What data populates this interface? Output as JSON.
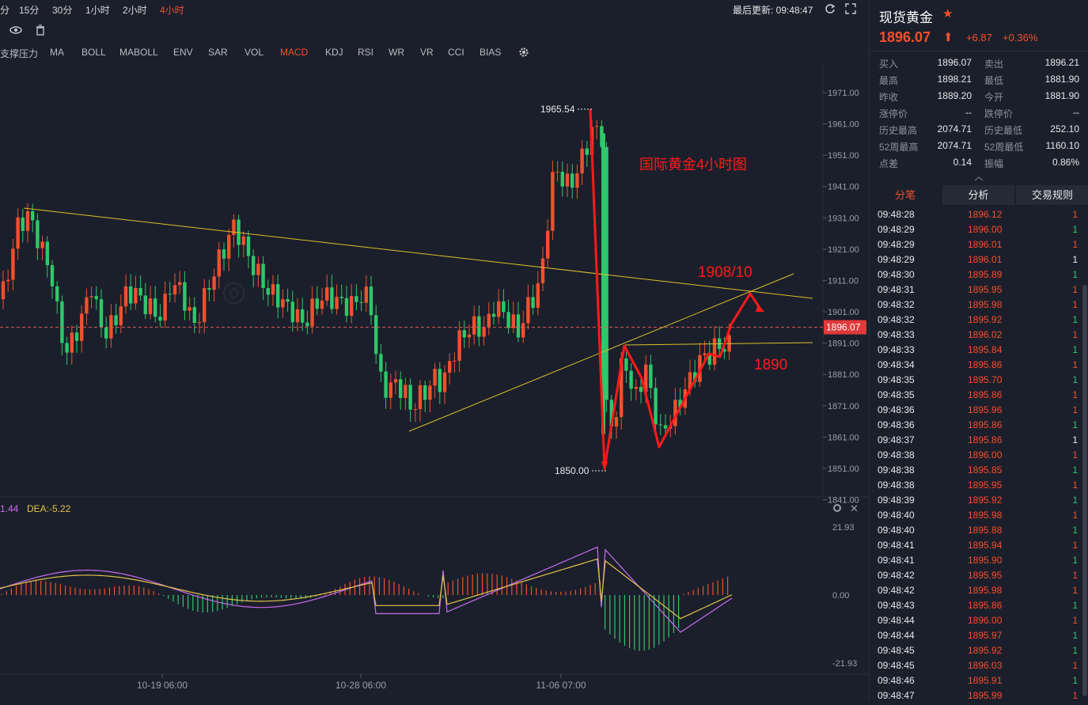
{
  "topbar": {
    "periods": [
      {
        "label": "分",
        "active": false
      },
      {
        "label": "15分",
        "active": false
      },
      {
        "label": "30分",
        "active": false
      },
      {
        "label": "1小时",
        "active": false
      },
      {
        "label": "2小时",
        "active": false
      },
      {
        "label": "4小时",
        "active": true
      }
    ],
    "last_update_label": "最后更新: 09:48:47"
  },
  "indicators": [
    {
      "label": "支撑压力",
      "active": false
    },
    {
      "label": "MA",
      "active": false
    },
    {
      "label": "BOLL",
      "active": false
    },
    {
      "label": "MABOLL",
      "active": false
    },
    {
      "label": "ENV",
      "active": false
    },
    {
      "label": "SAR",
      "active": false
    },
    {
      "label": "VOL",
      "active": false
    },
    {
      "label": "MACD",
      "active": true
    },
    {
      "label": "KDJ",
      "active": false
    },
    {
      "label": "RSI",
      "active": false
    },
    {
      "label": "WR",
      "active": false
    },
    {
      "label": "VR",
      "active": false
    },
    {
      "label": "CCI",
      "active": false
    },
    {
      "label": "BIAS",
      "active": false
    }
  ],
  "chart_data": [
    {
      "type": "candlestick",
      "title": "",
      "annotation_title": "国际黄金4小时图",
      "annotations": [
        "1908/10",
        "1890"
      ],
      "y_ticks": [
        "1971.00",
        "1961.00",
        "1951.00",
        "1941.00",
        "1931.00",
        "1921.00",
        "1911.00",
        "1901.00",
        "1891.00",
        "1881.00",
        "1871.00",
        "1861.00",
        "1851.00",
        "1841.00"
      ],
      "x_ticks": [
        "10-19 06:00",
        "10-28 06:00",
        "11-06 07:00"
      ],
      "ylim": [
        1841,
        1971
      ],
      "high_marker": "1965.54",
      "low_marker": "1850.00",
      "current_price_label": "1896.07",
      "current_price": 1896.07,
      "grid": false
    },
    {
      "type": "macd",
      "legend": [
        {
          "label": "1.44",
          "color": "#c56cf0"
        },
        {
          "label": "DEA:-5.22",
          "color": "#e3c24b"
        }
      ],
      "y_ticks": [
        "21.93",
        "0.00",
        "-21.93"
      ],
      "ylim": [
        -21.93,
        21.93
      ]
    }
  ],
  "panel": {
    "title": "现货黄金",
    "price": "1896.07",
    "change": "+6.87",
    "change_pct": "+0.36%",
    "quotes": [
      {
        "l1": "买入",
        "v1": "1896.07",
        "l2": "卖出",
        "v2": "1896.21"
      },
      {
        "l1": "最高",
        "v1": "1898.21",
        "l2": "最低",
        "v2": "1881.90"
      },
      {
        "l1": "昨收",
        "v1": "1889.20",
        "l2": "今开",
        "v2": "1881.90"
      },
      {
        "l1": "涨停价",
        "v1": "--",
        "l2": "跌停价",
        "v2": "--"
      },
      {
        "l1": "历史最高",
        "v1": "2074.71",
        "l2": "历史最低",
        "v2": "252.10"
      },
      {
        "l1": "52周最高",
        "v1": "2074.71",
        "l2": "52周最低",
        "v2": "1160.10"
      },
      {
        "l1": "点差",
        "v1": "0.14",
        "l2": "振幅",
        "v2": "0.86%"
      }
    ],
    "tabs": [
      "分笔",
      "分析",
      "交易规则"
    ],
    "ticks": [
      {
        "t": "09:48:28",
        "p": "1896.12",
        "v": "1",
        "c": "#f0502d"
      },
      {
        "t": "09:48:29",
        "p": "1896.00",
        "v": "1",
        "c": "#2fc76a"
      },
      {
        "t": "09:48:29",
        "p": "1896.01",
        "v": "1",
        "c": "#f0502d"
      },
      {
        "t": "09:48:29",
        "p": "1896.01",
        "v": "1",
        "c": "#e6e8ec"
      },
      {
        "t": "09:48:30",
        "p": "1895.89",
        "v": "1",
        "c": "#2fc76a"
      },
      {
        "t": "09:48:31",
        "p": "1895.95",
        "v": "1",
        "c": "#f0502d"
      },
      {
        "t": "09:48:32",
        "p": "1895.98",
        "v": "1",
        "c": "#f0502d"
      },
      {
        "t": "09:48:32",
        "p": "1895.92",
        "v": "1",
        "c": "#2fc76a"
      },
      {
        "t": "09:48:33",
        "p": "1896.02",
        "v": "1",
        "c": "#f0502d"
      },
      {
        "t": "09:48:33",
        "p": "1895.84",
        "v": "1",
        "c": "#2fc76a"
      },
      {
        "t": "09:48:34",
        "p": "1895.86",
        "v": "1",
        "c": "#f0502d"
      },
      {
        "t": "09:48:35",
        "p": "1895.70",
        "v": "1",
        "c": "#2fc76a"
      },
      {
        "t": "09:48:35",
        "p": "1895.86",
        "v": "1",
        "c": "#f0502d"
      },
      {
        "t": "09:48:36",
        "p": "1895.96",
        "v": "1",
        "c": "#f0502d"
      },
      {
        "t": "09:48:36",
        "p": "1895.86",
        "v": "1",
        "c": "#2fc76a"
      },
      {
        "t": "09:48:37",
        "p": "1895.86",
        "v": "1",
        "c": "#e6e8ec"
      },
      {
        "t": "09:48:38",
        "p": "1896.00",
        "v": "1",
        "c": "#f0502d"
      },
      {
        "t": "09:48:38",
        "p": "1895.85",
        "v": "1",
        "c": "#2fc76a"
      },
      {
        "t": "09:48:38",
        "p": "1895.95",
        "v": "1",
        "c": "#f0502d"
      },
      {
        "t": "09:48:39",
        "p": "1895.92",
        "v": "1",
        "c": "#2fc76a"
      },
      {
        "t": "09:48:40",
        "p": "1895.98",
        "v": "1",
        "c": "#f0502d"
      },
      {
        "t": "09:48:40",
        "p": "1895.88",
        "v": "1",
        "c": "#2fc76a"
      },
      {
        "t": "09:48:41",
        "p": "1895.94",
        "v": "1",
        "c": "#f0502d"
      },
      {
        "t": "09:48:41",
        "p": "1895.90",
        "v": "1",
        "c": "#2fc76a"
      },
      {
        "t": "09:48:42",
        "p": "1895.95",
        "v": "1",
        "c": "#f0502d"
      },
      {
        "t": "09:48:42",
        "p": "1895.98",
        "v": "1",
        "c": "#f0502d"
      },
      {
        "t": "09:48:43",
        "p": "1895.86",
        "v": "1",
        "c": "#2fc76a"
      },
      {
        "t": "09:48:44",
        "p": "1896.00",
        "v": "1",
        "c": "#f0502d"
      },
      {
        "t": "09:48:44",
        "p": "1895.97",
        "v": "1",
        "c": "#2fc76a"
      },
      {
        "t": "09:48:45",
        "p": "1895.92",
        "v": "1",
        "c": "#2fc76a"
      },
      {
        "t": "09:48:45",
        "p": "1896.03",
        "v": "1",
        "c": "#f0502d"
      },
      {
        "t": "09:48:46",
        "p": "1895.91",
        "v": "1",
        "c": "#2fc76a"
      },
      {
        "t": "09:48:47",
        "p": "1895.99",
        "v": "1",
        "c": "#f0502d"
      }
    ]
  },
  "colors": {
    "up": "#f0502d",
    "down": "#2fc76a",
    "trend": "#d8c02a",
    "arrow": "#ff1a1a"
  }
}
